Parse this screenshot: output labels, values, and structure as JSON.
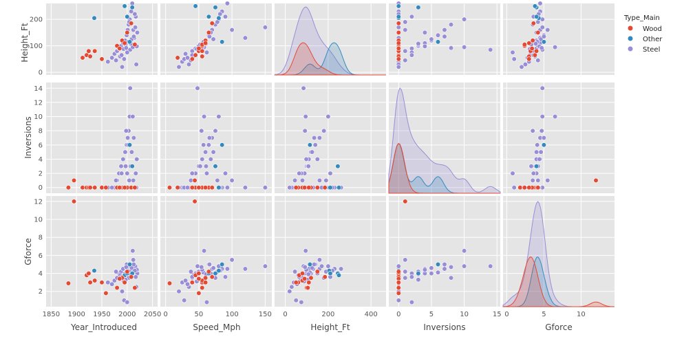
{
  "chart_data": {
    "type": "pairplot",
    "title": "",
    "variables": [
      "Height_Ft",
      "Inversions",
      "Gforce"
    ],
    "x_variables": [
      "Year_Introduced",
      "Speed_Mph",
      "Height_Ft",
      "Inversions",
      "Gforce"
    ],
    "legend": {
      "title": "Type_Main",
      "placement": "right",
      "entries": [
        {
          "label": "Wood",
          "color": "#e24a33"
        },
        {
          "label": "Other",
          "color": "#348abd"
        },
        {
          "label": "Steel",
          "color": "#988ed5"
        }
      ]
    },
    "x_ranges": {
      "Year_Introduced": [
        1840,
        2060
      ],
      "Speed_Mph": [
        -8,
        160
      ],
      "Height_Ft": [
        -50,
        470
      ],
      "Inversions": [
        -1.5,
        15.5
      ],
      "Gforce": [
        -0.5,
        14.5
      ]
    },
    "y_ranges": {
      "Height_Ft": [
        -10,
        260
      ],
      "Inversions": [
        -0.8,
        14.8
      ],
      "Gforce": [
        0.3,
        12.6
      ]
    },
    "x_ticks": {
      "Year_Introduced": [
        1850,
        1900,
        1950,
        2000,
        2050
      ],
      "Speed_Mph": [
        0,
        50,
        100,
        150
      ],
      "Height_Ft": [
        0,
        200,
        400
      ],
      "Inversions": [
        0,
        5,
        10,
        15
      ],
      "Gforce": [
        0,
        5,
        10
      ]
    },
    "y_ticks": {
      "Height_Ft": [
        0,
        100,
        200
      ],
      "Inversions": [
        0,
        2,
        4,
        6,
        8,
        10,
        12,
        14
      ],
      "Gforce": [
        2,
        4,
        6,
        8,
        10,
        12
      ]
    },
    "points": {
      "Wood": [
        {
          "Year_Introduced": 1884,
          "Speed_Mph": 6,
          "Height_Ft": null,
          "Inversions": 0,
          "Gforce": 2.9
        },
        {
          "Year_Introduced": 1895,
          "Speed_Mph": 44,
          "Height_Ft": null,
          "Inversions": 1,
          "Gforce": 12.0
        },
        {
          "Year_Introduced": 1912,
          "Speed_Mph": 18,
          "Height_Ft": 55,
          "Inversions": 0,
          "Gforce": null
        },
        {
          "Year_Introduced": 1920,
          "Speed_Mph": 45,
          "Height_Ft": 65,
          "Inversions": 0,
          "Gforce": 3.8
        },
        {
          "Year_Introduced": 1924,
          "Speed_Mph": 50,
          "Height_Ft": 80,
          "Inversions": 0,
          "Gforce": 4.0
        },
        {
          "Year_Introduced": 1927,
          "Speed_Mph": 55,
          "Height_Ft": 60,
          "Inversions": 0,
          "Gforce": 3.0
        },
        {
          "Year_Introduced": 1936,
          "Speed_Mph": 55,
          "Height_Ft": 80,
          "Inversions": 0,
          "Gforce": 3.2
        },
        {
          "Year_Introduced": 1950,
          "Speed_Mph": 40,
          "Height_Ft": 50,
          "Inversions": 0,
          "Gforce": 3.0
        },
        {
          "Year_Introduced": 1958,
          "Speed_Mph": 50,
          "Height_Ft": null,
          "Inversions": 0,
          "Gforce": 1.8
        },
        {
          "Year_Introduced": 1980,
          "Speed_Mph": 55,
          "Height_Ft": 100,
          "Inversions": 0,
          "Gforce": 2.4
        },
        {
          "Year_Introduced": 1990,
          "Speed_Mph": 60,
          "Height_Ft": 120,
          "Inversions": 0,
          "Gforce": 3.5
        },
        {
          "Year_Introduced": 2000,
          "Speed_Mph": 65,
          "Height_Ft": 150,
          "Inversions": 0,
          "Gforce": 4.2
        },
        {
          "Year_Introduced": 2008,
          "Speed_Mph": 70,
          "Height_Ft": 185,
          "Inversions": 0,
          "Gforce": 3.6
        },
        {
          "Year_Introduced": 2015,
          "Speed_Mph": 55,
          "Height_Ft": 105,
          "Inversions": 0,
          "Gforce": 2.4
        },
        {
          "Year_Introduced": 1985,
          "Speed_Mph": 50,
          "Height_Ft": 90,
          "Inversions": 0,
          "Gforce": 3.4
        },
        {
          "Year_Introduced": 1995,
          "Speed_Mph": 60,
          "Height_Ft": 110,
          "Inversions": 0,
          "Gforce": 3.0
        }
      ],
      "Other": [
        {
          "Year_Introduced": 1935,
          "Speed_Mph": 80,
          "Height_Ft": 205,
          "Inversions": 0,
          "Gforce": 4.3
        },
        {
          "Year_Introduced": 2010,
          "Speed_Mph": 75,
          "Height_Ft": 245,
          "Inversions": 3,
          "Gforce": 4.0
        },
        {
          "Year_Introduced": 2005,
          "Speed_Mph": 85,
          "Height_Ft": 115,
          "Inversions": 6,
          "Gforce": 5.0
        },
        {
          "Year_Introduced": 1995,
          "Speed_Mph": 45,
          "Height_Ft": 250,
          "Inversions": 0,
          "Gforce": 3.8
        },
        {
          "Year_Introduced": 2000,
          "Speed_Mph": 65,
          "Height_Ft": 210,
          "Inversions": 0,
          "Gforce": 4.0
        }
      ],
      "Steel": [
        {
          "Year_Introduced": 1962,
          "Speed_Mph": 25,
          "Height_Ft": 40,
          "Inversions": 0,
          "Gforce": 3.0
        },
        {
          "Year_Introduced": 1975,
          "Speed_Mph": 30,
          "Height_Ft": 70,
          "Inversions": 0,
          "Gforce": 3.2
        },
        {
          "Year_Introduced": 1980,
          "Speed_Mph": 40,
          "Height_Ft": 80,
          "Inversions": 1,
          "Gforce": 3.5
        },
        {
          "Year_Introduced": 1984,
          "Speed_Mph": 45,
          "Height_Ft": 90,
          "Inversions": 2,
          "Gforce": 4.0
        },
        {
          "Year_Introduced": 1988,
          "Speed_Mph": 50,
          "Height_Ft": 100,
          "Inversions": 3,
          "Gforce": 4.2
        },
        {
          "Year_Introduced": 1992,
          "Speed_Mph": 55,
          "Height_Ft": 110,
          "Inversions": 4,
          "Gforce": 4.5
        },
        {
          "Year_Introduced": 1996,
          "Speed_Mph": 60,
          "Height_Ft": 120,
          "Inversions": 5,
          "Gforce": 4.0
        },
        {
          "Year_Introduced": 1999,
          "Speed_Mph": 65,
          "Height_Ft": 140,
          "Inversions": 6,
          "Gforce": 5.0
        },
        {
          "Year_Introduced": 2001,
          "Speed_Mph": 70,
          "Height_Ft": 160,
          "Inversions": 7,
          "Gforce": 4.5
        },
        {
          "Year_Introduced": 2003,
          "Speed_Mph": 75,
          "Height_Ft": 180,
          "Inversions": 8,
          "Gforce": 3.5
        },
        {
          "Year_Introduced": 2005,
          "Speed_Mph": 80,
          "Height_Ft": 200,
          "Inversions": 10,
          "Gforce": 4.8
        },
        {
          "Year_Introduced": 2008,
          "Speed_Mph": 85,
          "Height_Ft": 230,
          "Inversions": 0,
          "Gforce": 4.5
        },
        {
          "Year_Introduced": 2010,
          "Speed_Mph": 93,
          "Height_Ft": 260,
          "Inversions": 0,
          "Gforce": 4.5
        },
        {
          "Year_Introduced": 2012,
          "Speed_Mph": 100,
          "Height_Ft": 160,
          "Inversions": 1,
          "Gforce": 5.5
        },
        {
          "Year_Introduced": 2014,
          "Speed_Mph": 120,
          "Height_Ft": 130,
          "Inversions": 0,
          "Gforce": 4.5
        },
        {
          "Year_Introduced": 2016,
          "Speed_Mph": 150,
          "Height_Ft": 170,
          "Inversions": 0,
          "Gforce": 4.8
        },
        {
          "Year_Introduced": 2018,
          "Speed_Mph": 35,
          "Height_Ft": 30,
          "Inversions": 0,
          "Gforce": 2.5
        },
        {
          "Year_Introduced": 1990,
          "Speed_Mph": 20,
          "Height_Ft": 20,
          "Inversions": 0,
          "Gforce": 2.0
        },
        {
          "Year_Introduced": 1994,
          "Speed_Mph": 28,
          "Height_Ft": 50,
          "Inversions": 0,
          "Gforce": 1.0
        },
        {
          "Year_Introduced": 2006,
          "Speed_Mph": 48,
          "Height_Ft": 85,
          "Inversions": 14,
          "Gforce": 4.8
        },
        {
          "Year_Introduced": 2011,
          "Speed_Mph": 58,
          "Height_Ft": 95,
          "Inversions": 10,
          "Gforce": 6.5
        },
        {
          "Year_Introduced": 2000,
          "Speed_Mph": 62,
          "Height_Ft": 75,
          "Inversions": 2,
          "Gforce": 0.8
        },
        {
          "Year_Introduced": 1986,
          "Speed_Mph": 42,
          "Height_Ft": 60,
          "Inversions": 0,
          "Gforce": 3.8
        },
        {
          "Year_Introduced": 1978,
          "Speed_Mph": 38,
          "Height_Ft": 45,
          "Inversions": 1,
          "Gforce": 4.2
        },
        {
          "Year_Introduced": 2020,
          "Speed_Mph": 68,
          "Height_Ft": 150,
          "Inversions": 4,
          "Gforce": 4.0
        },
        {
          "Year_Introduced": 2017,
          "Speed_Mph": 90,
          "Height_Ft": 210,
          "Inversions": 2,
          "Gforce": 3.6
        },
        {
          "Year_Introduced": 2009,
          "Speed_Mph": 72,
          "Height_Ft": 125,
          "Inversions": 5,
          "Gforce": 4.6
        },
        {
          "Year_Introduced": 1997,
          "Speed_Mph": 52,
          "Height_Ft": 105,
          "Inversions": 3,
          "Gforce": 3.3
        },
        {
          "Year_Introduced": 1970,
          "Speed_Mph": 33,
          "Height_Ft": 55,
          "Inversions": 0,
          "Gforce": 2.8
        },
        {
          "Year_Introduced": 2002,
          "Speed_Mph": 57,
          "Height_Ft": 115,
          "Inversions": 6,
          "Gforce": 4.1
        },
        {
          "Year_Introduced": 2013,
          "Speed_Mph": 66,
          "Height_Ft": 135,
          "Inversions": 7,
          "Gforce": 5.0
        },
        {
          "Year_Introduced": 2004,
          "Speed_Mph": 78,
          "Height_Ft": 190,
          "Inversions": 1,
          "Gforce": 4.2
        },
        {
          "Year_Introduced": 1993,
          "Speed_Mph": 47,
          "Height_Ft": 88,
          "Inversions": 0,
          "Gforce": 3.1
        },
        {
          "Year_Introduced": 2019,
          "Speed_Mph": 55,
          "Height_Ft": 98,
          "Inversions": 4,
          "Gforce": 4.4
        },
        {
          "Year_Introduced": 2007,
          "Speed_Mph": 61,
          "Height_Ft": 108,
          "Inversions": 3,
          "Gforce": 3.9
        },
        {
          "Year_Introduced": 1989,
          "Speed_Mph": 40,
          "Height_Ft": 65,
          "Inversions": 2,
          "Gforce": 3.6
        },
        {
          "Year_Introduced": 2015,
          "Speed_Mph": 82,
          "Height_Ft": 220,
          "Inversions": 0,
          "Gforce": 4.3
        },
        {
          "Year_Introduced": 1998,
          "Speed_Mph": 54,
          "Height_Ft": 92,
          "Inversions": 8,
          "Gforce": 4.7
        }
      ]
    }
  }
}
